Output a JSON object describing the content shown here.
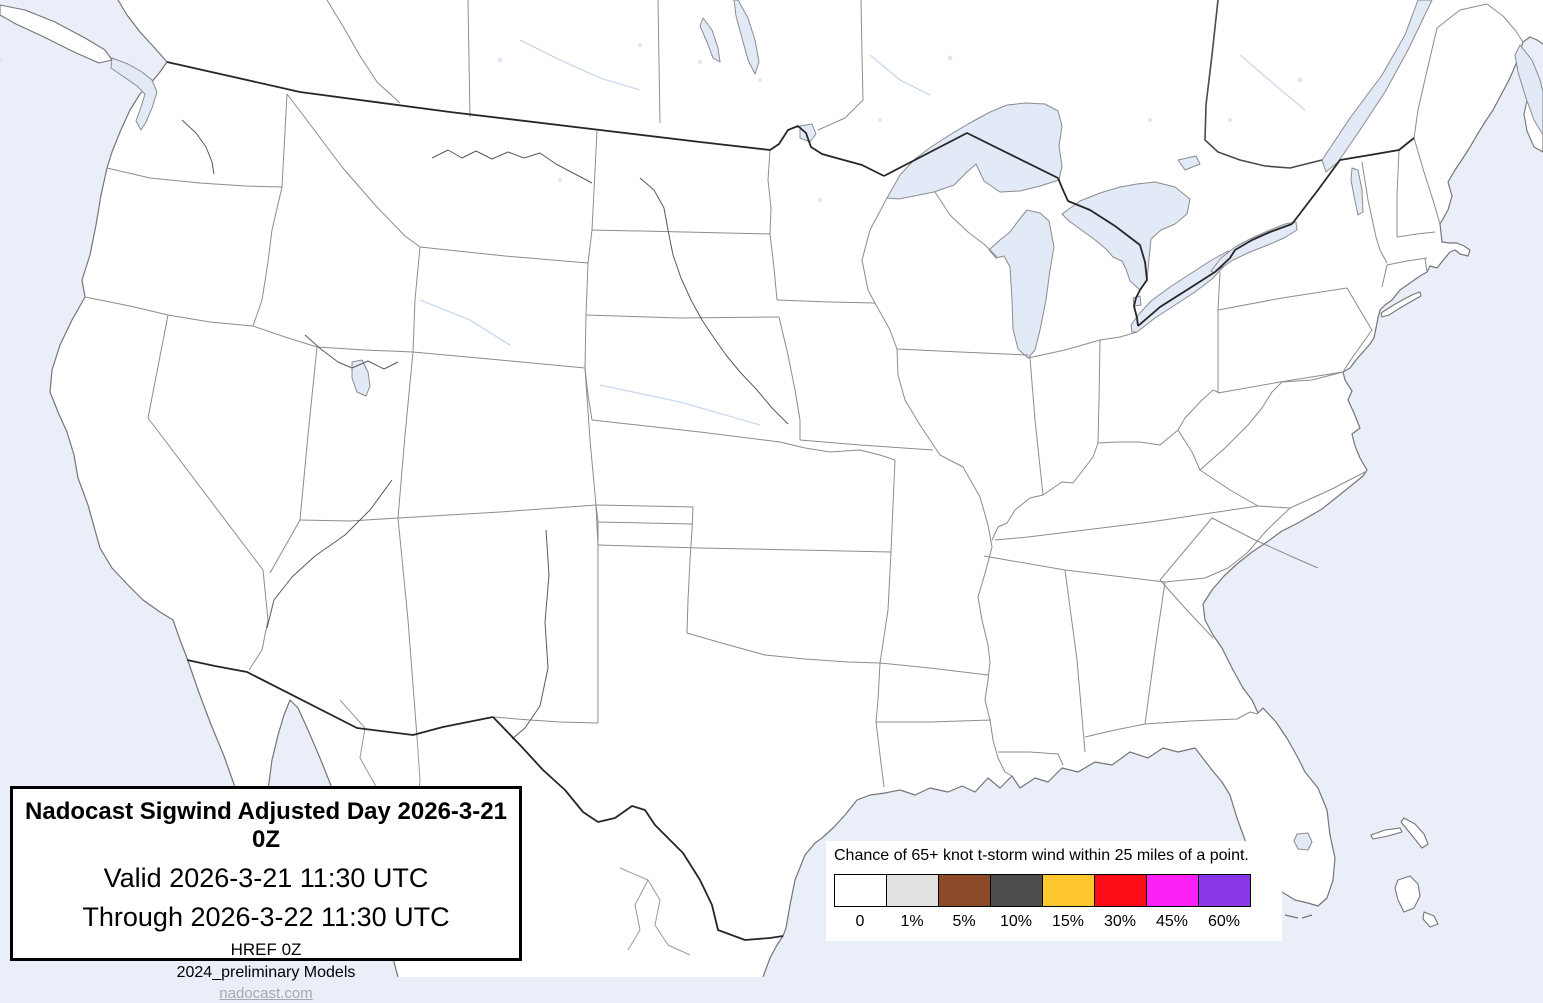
{
  "title_box": {
    "title": "Nadocast Sigwind Adjusted Day 2026-3-21 0Z",
    "valid_line": "Valid 2026-3-21 11:30 UTC",
    "through_line": "Through 2026-3-22 11:30 UTC",
    "model_line": "HREF 0Z",
    "models_line": "2024_preliminary Models",
    "website": "nadocast.com"
  },
  "legend": {
    "caption": "Chance of 65+ knot t-storm wind within 25 miles of a point.",
    "bins": [
      {
        "label": "0",
        "color": "#ffffff"
      },
      {
        "label": "1%",
        "color": "#e2e2e0"
      },
      {
        "label": "5%",
        "color": "#8b4a28"
      },
      {
        "label": "10%",
        "color": "#4c4c4c"
      },
      {
        "label": "15%",
        "color": "#ffc82e"
      },
      {
        "label": "30%",
        "color": "#fa0d16"
      },
      {
        "label": "45%",
        "color": "#fb20f6"
      },
      {
        "label": "60%",
        "color": "#8a37e8"
      }
    ]
  },
  "map": {
    "shaded_probability_areas": [],
    "colors": {
      "ocean": "#e9eef9",
      "land": "#ffffff",
      "lakes": "#e2e9f7",
      "state_border": "#8c8c8c",
      "coastline": "#757575",
      "national_border": "#262626"
    }
  }
}
